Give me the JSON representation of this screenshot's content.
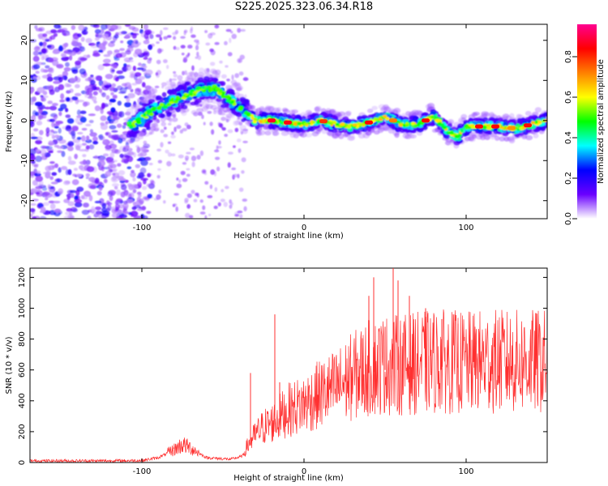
{
  "title": "S225.2025.323.06.34.R18",
  "chart_data": [
    {
      "type": "heatmap",
      "title": "S225.2025.323.06.34.R18",
      "xlabel": "Height of straight line (km)",
      "ylabel": "Frequency (Hz)",
      "xlim": [
        -169,
        150
      ],
      "ylim": [
        -24.5,
        24
      ],
      "xticks": [
        -100,
        0,
        100
      ],
      "yticks": [
        -20,
        -10,
        0,
        10,
        20
      ],
      "colorbar": {
        "label": "Normalized spectral amplitude",
        "range": [
          0,
          0.96
        ],
        "ticks": [
          "0.0",
          "0.2",
          "0.4",
          "0.6",
          "0.8"
        ],
        "tick_values": [
          0.0,
          0.2,
          0.4,
          0.6,
          0.8
        ],
        "colors": [
          "#ffffff",
          "#6a00ff",
          "#0000ff",
          "#00ffff",
          "#00ff00",
          "#ffff00",
          "#ff8000",
          "#ff0000",
          "#ff0090"
        ]
      },
      "ridge": {
        "description_points_x": [
          -105,
          -95,
          -85,
          -75,
          -65,
          -55,
          -45,
          -38,
          -30,
          -20,
          -10,
          0,
          10,
          20,
          30,
          40,
          50,
          60,
          70,
          80,
          90,
          95,
          100,
          110,
          120,
          130,
          140,
          150
        ],
        "description_points_y": [
          -1,
          2,
          4,
          6,
          7.5,
          8,
          5,
          3,
          0,
          0,
          -0.5,
          -1,
          0,
          -1,
          -1.5,
          -0.5,
          1,
          -1,
          -1,
          1,
          -3,
          -4,
          -1.5,
          -1.5,
          -1.5,
          -2,
          -1,
          0
        ]
      }
    },
    {
      "type": "line",
      "xlabel": "Height of straight line (km)",
      "ylabel": "SNR (10 * v/v)",
      "xlim": [
        -169,
        150
      ],
      "ylim": [
        0,
        1260
      ],
      "xticks": [
        -100,
        0,
        100
      ],
      "yticks": [
        0,
        200,
        400,
        600,
        800,
        1000,
        1200
      ],
      "color": "#ff3030",
      "envelope_x": [
        -169,
        -120,
        -100,
        -90,
        -80,
        -75,
        -70,
        -60,
        -45,
        -38,
        -35,
        -30,
        -25,
        -20,
        -15,
        -10,
        -5,
        0,
        10,
        20,
        30,
        40,
        50,
        60,
        70,
        80,
        90,
        100,
        110,
        120,
        130,
        140,
        150
      ],
      "envelope_y": [
        10,
        10,
        12,
        30,
        80,
        110,
        90,
        30,
        20,
        40,
        100,
        170,
        220,
        240,
        280,
        320,
        340,
        360,
        420,
        460,
        530,
        580,
        600,
        600,
        610,
        620,
        620,
        610,
        620,
        620,
        620,
        620,
        620
      ],
      "spikes": [
        [
          -33,
          580
        ],
        [
          -18,
          960
        ],
        [
          -15,
          520
        ],
        [
          40,
          1080
        ],
        [
          43,
          1200
        ],
        [
          50,
          880
        ],
        [
          55,
          1260
        ],
        [
          58,
          1180
        ],
        [
          65,
          1080
        ],
        [
          75,
          1000
        ],
        [
          85,
          930
        ],
        [
          95,
          900
        ],
        [
          105,
          850
        ]
      ]
    }
  ]
}
